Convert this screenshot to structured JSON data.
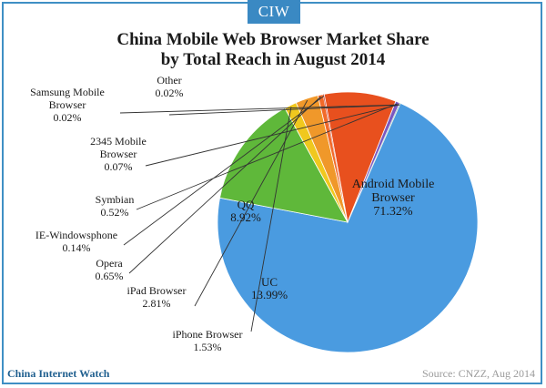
{
  "logo": {
    "text": "CIW"
  },
  "footer": {
    "brand": "China Internet Watch",
    "source": "Source: CNZZ, Aug 2014"
  },
  "colors": {
    "border": "#3f8fc4",
    "android": "#4a9be0",
    "uc": "#5fb83a",
    "iphone": "#f0c81e",
    "ipad": "#f0982a",
    "opera": "#f26a2a",
    "ie": "#c83c2a",
    "qq": "#e8501e",
    "symbian": "#7a58c0",
    "b2345": "#4aa0c8",
    "samsung": "#c8d23c",
    "other": "#9cc03a"
  },
  "chart_data": {
    "type": "pie",
    "title_line1": "China  Mobile Web Browser Market Share",
    "title_line2": "by Total Reach in August 2014",
    "slices": [
      {
        "key": "android",
        "name_lines": [
          "Android Mobile",
          "Browser"
        ],
        "value": 71.32,
        "label": "71.32%"
      },
      {
        "key": "uc",
        "name_lines": [
          "UC"
        ],
        "value": 13.99,
        "label": "13.99%"
      },
      {
        "key": "iphone",
        "name_lines": [
          "iPhone Browser"
        ],
        "value": 1.53,
        "label": "1.53%"
      },
      {
        "key": "ipad",
        "name_lines": [
          "iPad Browser"
        ],
        "value": 2.81,
        "label": "2.81%"
      },
      {
        "key": "opera",
        "name_lines": [
          "Opera"
        ],
        "value": 0.65,
        "label": "0.65%"
      },
      {
        "key": "ie",
        "name_lines": [
          "IE-Windowsphone"
        ],
        "value": 0.14,
        "label": "0.14%"
      },
      {
        "key": "qq",
        "name_lines": [
          "QQ"
        ],
        "value": 8.92,
        "label": "8.92%"
      },
      {
        "key": "symbian",
        "name_lines": [
          "Symbian"
        ],
        "value": 0.52,
        "label": "0.52%"
      },
      {
        "key": "b2345",
        "name_lines": [
          "2345 Mobile",
          "Browser"
        ],
        "value": 0.07,
        "label": "0.07%"
      },
      {
        "key": "samsung",
        "name_lines": [
          "Samsung Mobile",
          "Browser"
        ],
        "value": 0.02,
        "label": "0.02%"
      },
      {
        "key": "other",
        "name_lines": [
          "Other"
        ],
        "value": 0.02,
        "label": "0.02%"
      }
    ]
  }
}
